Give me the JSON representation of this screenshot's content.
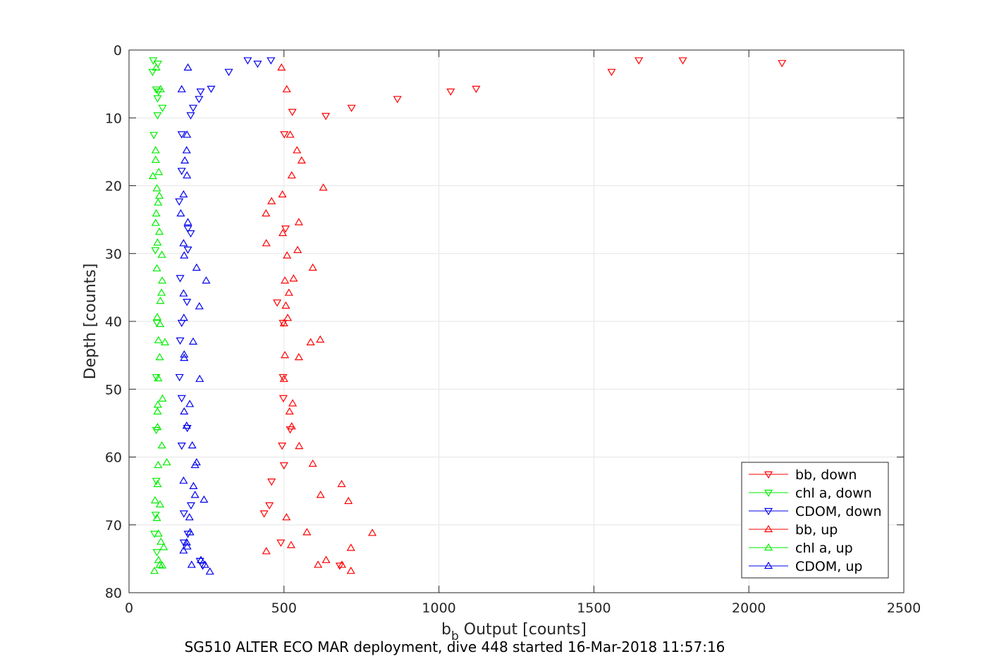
{
  "chart_data": {
    "type": "scatter",
    "xlabel_main": "b",
    "xlabel_sub": "b",
    "xlabel_rest": " Output [counts]",
    "ylabel": "Depth [counts]",
    "caption": "SG510 ALTER ECO MAR deployment, dive 448 started 16-Mar-2018 11:57:16",
    "xlim": [
      0,
      2500
    ],
    "ylim": [
      0,
      80
    ],
    "y_reversed": true,
    "grid": true,
    "legend_placement": "bottom-right",
    "xticks": [
      "0",
      "500",
      "1000",
      "1500",
      "2000",
      "2500"
    ],
    "yticks": [
      "0",
      "10",
      "20",
      "30",
      "40",
      "50",
      "60",
      "70",
      "80"
    ],
    "series": [
      {
        "name": "bb, down",
        "color": "#ff0000",
        "marker": "triangle-down",
        "points": [
          [
            1645,
            1.5
          ],
          [
            1787,
            1.5
          ],
          [
            2107,
            1.9
          ],
          [
            1557,
            3.2
          ],
          [
            1120,
            5.7
          ],
          [
            1038,
            6.1
          ],
          [
            866,
            7.2
          ],
          [
            718,
            8.5
          ],
          [
            527,
            9.1
          ],
          [
            635,
            9.7
          ],
          [
            501,
            12.4
          ],
          [
            505,
            26.3
          ],
          [
            490,
            72.6
          ],
          [
            520,
            55.9
          ],
          [
            494,
            58.3
          ],
          [
            500,
            61.2
          ],
          [
            460,
            63.6
          ],
          [
            453,
            67.1
          ],
          [
            436,
            68.3
          ],
          [
            478,
            37.2
          ],
          [
            497,
            40.2
          ],
          [
            497,
            48.2
          ],
          [
            498,
            51.3
          ],
          [
            680,
            76.0
          ]
        ]
      },
      {
        "name": "chl a, down",
        "color": "#00ee00",
        "marker": "triangle-down",
        "points": [
          [
            78,
            1.5
          ],
          [
            93,
            2.0
          ],
          [
            76,
            3.2
          ],
          [
            88,
            5.8
          ],
          [
            95,
            6.1
          ],
          [
            92,
            7.1
          ],
          [
            108,
            8.5
          ],
          [
            92,
            9.6
          ],
          [
            80,
            12.5
          ],
          [
            85,
            29.5
          ],
          [
            90,
            40.2
          ],
          [
            88,
            48.2
          ],
          [
            88,
            56.0
          ],
          [
            88,
            63.5
          ],
          [
            86,
            68.5
          ],
          [
            82,
            71.3
          ],
          [
            90,
            74.0
          ]
        ]
      },
      {
        "name": "CDOM, down",
        "color": "#0000ee",
        "marker": "triangle-down",
        "points": [
          [
            383,
            1.5
          ],
          [
            458,
            1.5
          ],
          [
            415,
            2.0
          ],
          [
            322,
            3.2
          ],
          [
            265,
            5.7
          ],
          [
            231,
            6.1
          ],
          [
            226,
            7.2
          ],
          [
            207,
            8.5
          ],
          [
            199,
            9.6
          ],
          [
            170,
            12.4
          ],
          [
            170,
            17.8
          ],
          [
            162,
            22.3
          ],
          [
            190,
            26.3
          ],
          [
            199,
            27.0
          ],
          [
            190,
            29.4
          ],
          [
            165,
            33.6
          ],
          [
            187,
            37.1
          ],
          [
            170,
            40.2
          ],
          [
            165,
            42.8
          ],
          [
            163,
            48.2
          ],
          [
            170,
            51.3
          ],
          [
            188,
            55.7
          ],
          [
            170,
            58.3
          ],
          [
            200,
            67.1
          ],
          [
            177,
            68.3
          ],
          [
            190,
            71.3
          ],
          [
            177,
            72.6
          ],
          [
            229,
            75.3
          ],
          [
            238,
            76.0
          ]
        ]
      },
      {
        "name": "bb, up",
        "color": "#ff0000",
        "marker": "triangle-up",
        "points": [
          [
            492,
            2.6
          ],
          [
            509,
            5.8
          ],
          [
            520,
            12.5
          ],
          [
            542,
            14.8
          ],
          [
            557,
            16.3
          ],
          [
            525,
            18.5
          ],
          [
            627,
            20.3
          ],
          [
            495,
            21.3
          ],
          [
            460,
            22.3
          ],
          [
            442,
            24.1
          ],
          [
            548,
            25.4
          ],
          [
            496,
            27.0
          ],
          [
            443,
            28.5
          ],
          [
            544,
            29.5
          ],
          [
            510,
            30.3
          ],
          [
            593,
            32.1
          ],
          [
            531,
            33.7
          ],
          [
            503,
            34.0
          ],
          [
            516,
            35.8
          ],
          [
            506,
            37.7
          ],
          [
            512,
            39.5
          ],
          [
            500,
            40.3
          ],
          [
            586,
            43.1
          ],
          [
            617,
            42.7
          ],
          [
            548,
            45.3
          ],
          [
            503,
            45.0
          ],
          [
            500,
            48.5
          ],
          [
            528,
            52.1
          ],
          [
            518,
            53.3
          ],
          [
            525,
            55.5
          ],
          [
            549,
            58.4
          ],
          [
            593,
            61.0
          ],
          [
            686,
            64.0
          ],
          [
            618,
            65.6
          ],
          [
            708,
            66.5
          ],
          [
            508,
            68.9
          ],
          [
            785,
            71.2
          ],
          [
            574,
            71.1
          ],
          [
            523,
            73.0
          ],
          [
            716,
            73.4
          ],
          [
            443,
            73.9
          ],
          [
            636,
            75.2
          ],
          [
            610,
            75.9
          ],
          [
            687,
            75.9
          ],
          [
            716,
            76.8
          ]
        ]
      },
      {
        "name": "chl a, up",
        "color": "#00ee00",
        "marker": "triangle-up",
        "points": [
          [
            88,
            2.6
          ],
          [
            102,
            5.8
          ],
          [
            86,
            14.8
          ],
          [
            86,
            16.2
          ],
          [
            77,
            18.6
          ],
          [
            96,
            18.0
          ],
          [
            90,
            20.4
          ],
          [
            98,
            21.5
          ],
          [
            94,
            22.5
          ],
          [
            88,
            24.1
          ],
          [
            86,
            25.5
          ],
          [
            98,
            26.8
          ],
          [
            92,
            28.4
          ],
          [
            106,
            30.2
          ],
          [
            90,
            32.2
          ],
          [
            107,
            34.0
          ],
          [
            105,
            35.8
          ],
          [
            101,
            37.0
          ],
          [
            91,
            39.4
          ],
          [
            100,
            40.4
          ],
          [
            116,
            43.1
          ],
          [
            95,
            42.8
          ],
          [
            99,
            45.3
          ],
          [
            94,
            48.4
          ],
          [
            108,
            51.4
          ],
          [
            93,
            52.3
          ],
          [
            92,
            53.3
          ],
          [
            92,
            55.6
          ],
          [
            106,
            58.3
          ],
          [
            122,
            60.8
          ],
          [
            94,
            61.2
          ],
          [
            92,
            64.0
          ],
          [
            84,
            66.4
          ],
          [
            100,
            67.0
          ],
          [
            90,
            69.0
          ],
          [
            95,
            71.3
          ],
          [
            103,
            72.5
          ],
          [
            112,
            73.3
          ],
          [
            95,
            75.2
          ],
          [
            99,
            75.9
          ],
          [
            107,
            76.0
          ],
          [
            82,
            76.8
          ]
        ]
      },
      {
        "name": "CDOM, up",
        "color": "#0000ee",
        "marker": "triangle-up",
        "points": [
          [
            190,
            2.6
          ],
          [
            170,
            5.8
          ],
          [
            187,
            12.5
          ],
          [
            186,
            14.8
          ],
          [
            180,
            16.3
          ],
          [
            187,
            18.5
          ],
          [
            176,
            21.3
          ],
          [
            167,
            24.1
          ],
          [
            190,
            25.4
          ],
          [
            176,
            28.5
          ],
          [
            178,
            30.3
          ],
          [
            218,
            32.1
          ],
          [
            249,
            34.0
          ],
          [
            176,
            35.9
          ],
          [
            227,
            37.8
          ],
          [
            177,
            39.5
          ],
          [
            207,
            43.0
          ],
          [
            178,
            44.9
          ],
          [
            178,
            45.4
          ],
          [
            228,
            48.5
          ],
          [
            196,
            52.2
          ],
          [
            178,
            53.3
          ],
          [
            186,
            55.4
          ],
          [
            204,
            58.3
          ],
          [
            218,
            60.8
          ],
          [
            213,
            61.2
          ],
          [
            176,
            63.5
          ],
          [
            208,
            64.3
          ],
          [
            213,
            65.6
          ],
          [
            242,
            66.3
          ],
          [
            195,
            68.9
          ],
          [
            197,
            71.1
          ],
          [
            186,
            72.6
          ],
          [
            188,
            73.2
          ],
          [
            176,
            73.8
          ],
          [
            232,
            75.2
          ],
          [
            202,
            75.9
          ],
          [
            245,
            75.9
          ],
          [
            261,
            76.9
          ]
        ]
      }
    ]
  }
}
